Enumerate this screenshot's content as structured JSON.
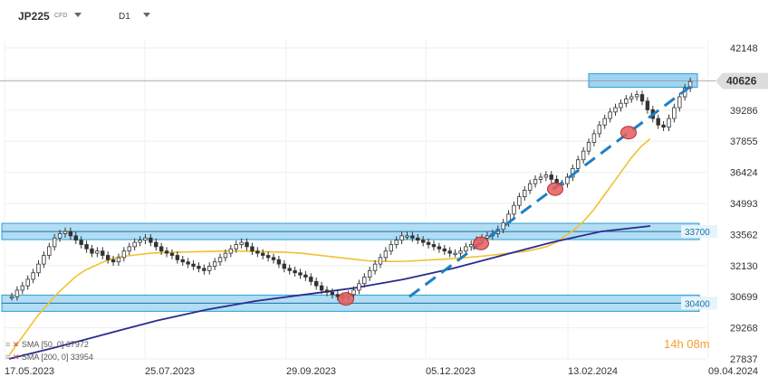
{
  "header": {
    "symbol": "JP225",
    "symbol_type": "CFD",
    "timeframe": "D1"
  },
  "price_tag": "40626",
  "timer": "14h 08m",
  "indicators": [
    {
      "label": "SMA [50, 0] 37972",
      "color": "#f2c12e"
    },
    {
      "label": "SMA [200, 0] 33954",
      "color": "#2b2b8f"
    }
  ],
  "colors": {
    "candle": "#333333",
    "zone_fill": "#9fd4f0",
    "zone_border": "#2a9fd8",
    "trendline_dash": "#1f7fc4",
    "sma50": "#f2c12e",
    "sma200": "#2b2b8f",
    "highlight": "#e85a5a",
    "price_tag_bg": "#dddddd"
  },
  "chart_data": {
    "type": "candlestick",
    "title": "",
    "y_ticks": [
      42148,
      40717,
      39286,
      37855,
      36424,
      34993,
      33562,
      32130,
      30699,
      29268,
      27837
    ],
    "y_tick_labels": [
      "42148",
      "",
      "39286",
      "37855",
      "36424",
      "34993",
      "33562",
      "32130",
      "30699",
      "29268",
      "27837"
    ],
    "x_ticks": [
      "17.05.2023",
      "25.07.2023",
      "29.09.2023",
      "05.12.2023",
      "13.02.2024",
      "09.04.2024"
    ],
    "ylim": [
      27837,
      42148
    ],
    "close": [
      30700,
      31000,
      31200,
      31500,
      31800,
      32200,
      32600,
      33000,
      33400,
      33600,
      33700,
      33500,
      33300,
      33100,
      32900,
      32700,
      32800,
      32600,
      32400,
      32300,
      32500,
      32800,
      33000,
      33200,
      33300,
      33400,
      33200,
      33000,
      32800,
      32700,
      32600,
      32400,
      32300,
      32200,
      32100,
      32000,
      31900,
      32100,
      32300,
      32500,
      32700,
      32900,
      33100,
      33200,
      33000,
      32800,
      32700,
      32600,
      32500,
      32400,
      32200,
      32000,
      31900,
      31800,
      31700,
      31600,
      31400,
      31200,
      31000,
      30900,
      30800,
      30700,
      30700,
      30800,
      31000,
      31300,
      31600,
      31900,
      32200,
      32500,
      32800,
      33100,
      33300,
      33500,
      33500,
      33400,
      33300,
      33200,
      33100,
      33000,
      32900,
      32800,
      32700,
      32700,
      32800,
      33000,
      33100,
      33300,
      33400,
      33500,
      33600,
      33800,
      34100,
      34500,
      34900,
      35300,
      35600,
      35900,
      36100,
      36200,
      36300,
      36100,
      35900,
      35900,
      36200,
      36600,
      37000,
      37400,
      37800,
      38200,
      38600,
      38900,
      39200,
      39400,
      39600,
      39800,
      39900,
      40000,
      39700,
      39300,
      38900,
      38600,
      38500,
      38900,
      39400,
      39900,
      40300,
      40600
    ],
    "levels": [
      {
        "value": 33700,
        "label": "33700"
      },
      {
        "value": 30400,
        "label": "30400"
      }
    ],
    "series": [
      {
        "name": "SMA [50, 0] 37972",
        "values": [
          28000,
          28600,
          29200,
          29800,
          30300,
          30800,
          31200,
          31600,
          31900,
          32100,
          32300,
          32450,
          32550,
          32600,
          32650,
          32700,
          32720,
          32740,
          32750,
          32760,
          32770,
          32780,
          32790,
          32800,
          32800,
          32790,
          32780,
          32770,
          32760,
          32750,
          32730,
          32700,
          32650,
          32600,
          32550,
          32500,
          32450,
          32400,
          32350,
          32330,
          32320,
          32320,
          32330,
          32350,
          32380,
          32400,
          32420,
          32450,
          32480,
          32520,
          32560,
          32600,
          32650,
          32700,
          32750,
          32800,
          32900,
          33000,
          33200,
          33500,
          33800,
          34200,
          34700,
          35300,
          35900,
          36500,
          37100,
          37600,
          37972
        ]
      },
      {
        "name": "SMA [200, 0] 33954",
        "values": [
          27837,
          28400,
          29000,
          29600,
          30100,
          30500,
          30800,
          31100,
          31500,
          32000,
          32600,
          33200,
          33700,
          33954
        ]
      }
    ],
    "grid": true
  }
}
